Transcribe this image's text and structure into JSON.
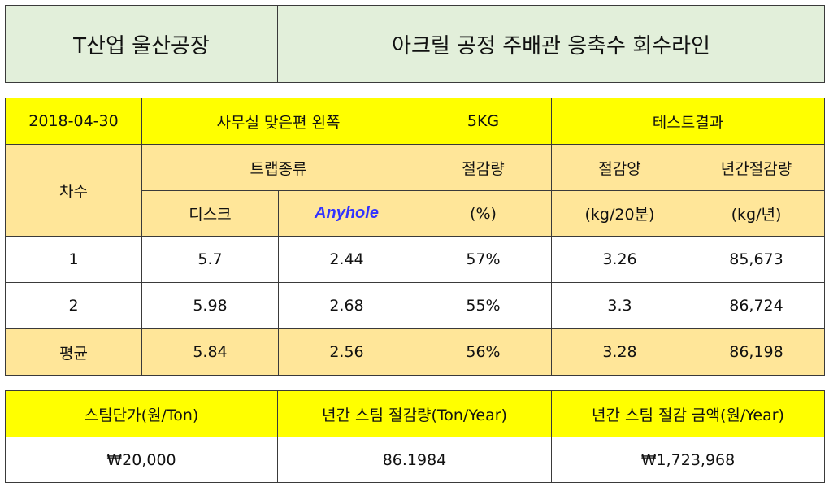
{
  "header": {
    "company": "T산업 울산공장",
    "title": "아크릴 공정 주배관 응축수 회수라인"
  },
  "info": {
    "date": "2018-04-30",
    "location": "사무실 맞은편 왼쪽",
    "pressure": "5KG",
    "result": "테스트결과"
  },
  "columns": {
    "round": "차수",
    "trap_type": "트랩종류",
    "disc": "디스크",
    "anyhole": "Anyhole",
    "saving_rate": "절감량",
    "saving_rate_unit": "(%)",
    "saving_amount": "절감양",
    "saving_amount_unit": "(kg/20분)",
    "annual_saving": "년간절감량",
    "annual_saving_unit": "(kg/년)"
  },
  "rows": [
    {
      "round": "1",
      "disc": "5.7",
      "anyhole": "2.44",
      "rate": "57%",
      "amount": "3.26",
      "annual": "85,673"
    },
    {
      "round": "2",
      "disc": "5.98",
      "anyhole": "2.68",
      "rate": "55%",
      "amount": "3.3",
      "annual": "86,724"
    },
    {
      "round": "평균",
      "disc": "5.84",
      "anyhole": "2.56",
      "rate": "56%",
      "amount": "3.28",
      "annual": "86,198"
    }
  ],
  "summary": {
    "headers": [
      "스팀단가(원/Ton)",
      "년간 스팀 절감량(Ton/Year)",
      "년간 스팀 절감 금액(원/Year)"
    ],
    "values": [
      "₩20,000",
      "86.1984",
      "₩1,723,968"
    ]
  }
}
